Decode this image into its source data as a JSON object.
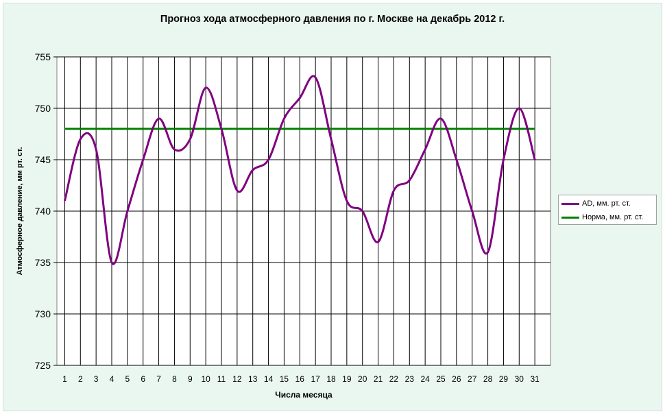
{
  "chart_data": {
    "type": "line",
    "title": "Прогноз хода атмосферного давления по г. Москве на декабрь 2012 г.",
    "xlabel": "Числа месяца",
    "ylabel": "Атмосферное давление, мм рт. ст.",
    "ylim": [
      725,
      755
    ],
    "yticks": [
      725,
      730,
      735,
      740,
      745,
      750,
      755
    ],
    "categories": [
      "1",
      "2",
      "3",
      "4",
      "5",
      "6",
      "7",
      "8",
      "9",
      "10",
      "11",
      "12",
      "13",
      "14",
      "15",
      "16",
      "17",
      "18",
      "19",
      "20",
      "21",
      "22",
      "23",
      "24",
      "25",
      "26",
      "27",
      "28",
      "29",
      "30",
      "31"
    ],
    "grid": true,
    "legend_position": "right",
    "series": [
      {
        "name": "AD, мм. рт. ст.",
        "color": "#800080",
        "values": [
          741,
          747,
          746,
          735,
          740,
          745,
          749,
          746,
          747,
          752,
          748,
          742,
          744,
          745,
          749,
          751,
          753,
          747,
          741,
          740,
          737,
          742,
          743,
          746,
          749,
          745,
          740,
          736,
          745,
          750,
          745
        ]
      },
      {
        "name": "Норма, мм. рт. ст.",
        "color": "#008000",
        "values": [
          748,
          748,
          748,
          748,
          748,
          748,
          748,
          748,
          748,
          748,
          748,
          748,
          748,
          748,
          748,
          748,
          748,
          748,
          748,
          748,
          748,
          748,
          748,
          748,
          748,
          748,
          748,
          748,
          748,
          748,
          748
        ]
      }
    ]
  }
}
